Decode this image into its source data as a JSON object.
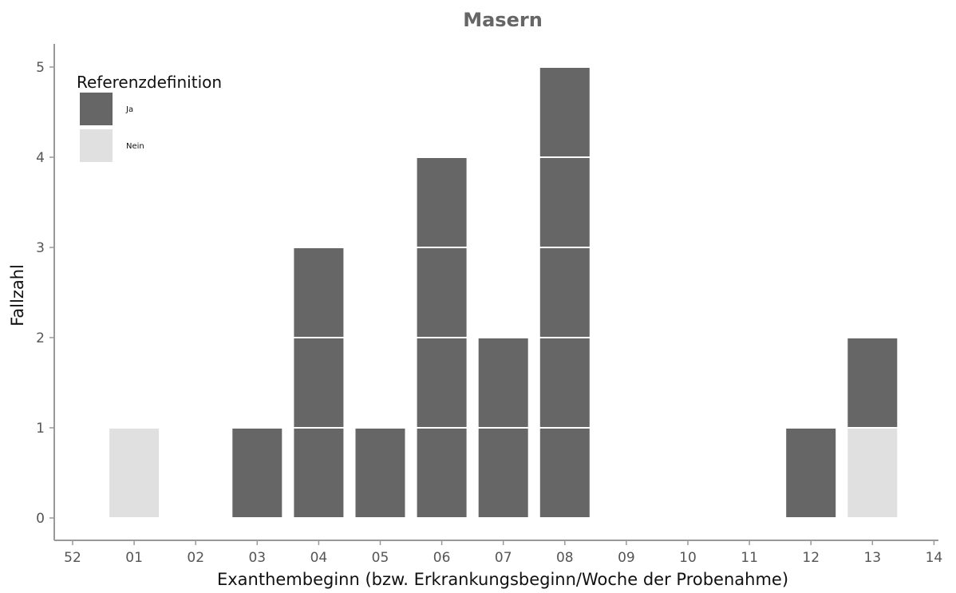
{
  "chart_data": {
    "type": "bar",
    "stacked": true,
    "unit_boxes": true,
    "title": "Masern",
    "xlabel": "Exanthembeginn (bzw. Erkrankungsbeginn/Woche der Probenahme)",
    "ylabel": "Fallzahl",
    "categories": [
      "52",
      "01",
      "02",
      "03",
      "04",
      "05",
      "06",
      "07",
      "08",
      "09",
      "10",
      "11",
      "12",
      "13",
      "14"
    ],
    "y_ticks": [
      0,
      1,
      2,
      3,
      4,
      5
    ],
    "ylim": [
      0,
      5
    ],
    "grid": false,
    "legend": {
      "title": "Referenzdefinition",
      "position": "top-left"
    },
    "series": [
      {
        "name": "Nein",
        "color": "#e0e0e0",
        "values": [
          0,
          1,
          0,
          0,
          0,
          0,
          0,
          0,
          0,
          0,
          0,
          0,
          0,
          1,
          0
        ]
      },
      {
        "name": "Ja",
        "color": "#666666",
        "values": [
          0,
          0,
          0,
          1,
          3,
          1,
          4,
          2,
          5,
          0,
          0,
          0,
          1,
          1,
          0
        ]
      }
    ],
    "legend_order": [
      "Ja",
      "Nein"
    ]
  }
}
